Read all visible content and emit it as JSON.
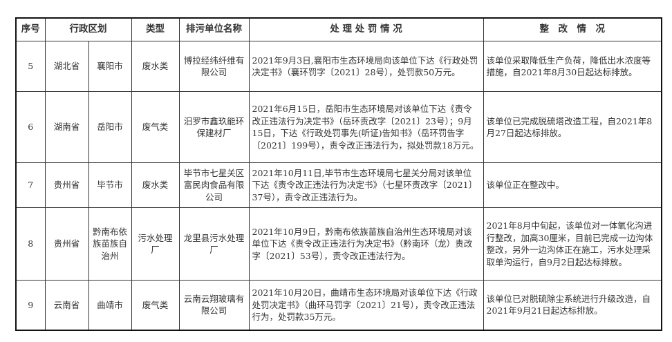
{
  "headers": {
    "seq": "序号",
    "region": "行政区划",
    "type": "类型",
    "unit": "排污单位名称",
    "penalty": "处 理 处 罚 情 况",
    "rectify": "整　改　情　况"
  },
  "rows": [
    {
      "seq": "5",
      "province": "湖北省",
      "city": "襄阳市",
      "type": "废水类",
      "unit": "博拉经纬纤维有限公司",
      "penalty": "2021年9月3日,襄阳市生态环境局向该单位下达《行政处罚决定书》（襄环罚字〔2021〕28号），处罚款50万元。",
      "rectify": "该单位采取降低生产负荷，降低出水浓度等措施，自2021年8月30日起达标排放。"
    },
    {
      "seq": "6",
      "province": "湖南省",
      "city": "岳阳市",
      "type": "废气类",
      "unit": "汨罗市鑫玖能环保建材厂",
      "penalty": "2021年6月15日，岳阳市生态环境局对该单位下达《责令改正违法行为决定书》（岳环责改字〔2021〕23号）；9月15日，下达《行政处罚事先(听证)告知书》（岳环罚告字〔2021〕199号），责令改正违法行为，拟处罚款18万元。",
      "rectify": "该单位已完成脱硫塔改造工程，自2021年8月27日起达标排放。"
    },
    {
      "seq": "7",
      "province": "贵州省",
      "city": "毕节市",
      "type": "废水类",
      "unit": "毕节市七星关区富民肉食品有限公司",
      "penalty": "2021年10月11日,毕节市生态环境局七星关分局对该单位下达《责令改正违法行为决定书》（七星环责改字〔2021〕37号），责令改正违法行为。",
      "rectify": "该单位正在整改中。"
    },
    {
      "seq": "8",
      "province": "贵州省",
      "city": "黔南布依族苗族自治州",
      "type": "污水处理厂",
      "unit": "龙里县污水处理厂",
      "penalty": "2021年10月9日，黔南布依族苗族自治州生态环境局对该单位下达《责令改正违法行为决定书》（黔南环（龙）责改字〔2021〕53号），责令改正违法行为。",
      "rectify": "2021年8月中旬起，该单位对一体氧化沟进行整改，加高30厘米，目前已完成一边沟体整改，另外一边沟体正在施工，污水处理采取单沟运行，自9月2日起达标排放。"
    },
    {
      "seq": "9",
      "province": "云南省",
      "city": "曲靖市",
      "type": "废气类",
      "unit": "云南云翔玻璃有限公司",
      "penalty": "2021年10月20日，曲靖市生态环境局对该单位下达《行政处罚决定书》（曲环马罚字〔2021〕21号），责令改正违法行为，处罚款35万元。",
      "rectify": "该单位已对脱硫除尘系统进行升级改造，自2021年9月21日起达标排放。"
    }
  ]
}
